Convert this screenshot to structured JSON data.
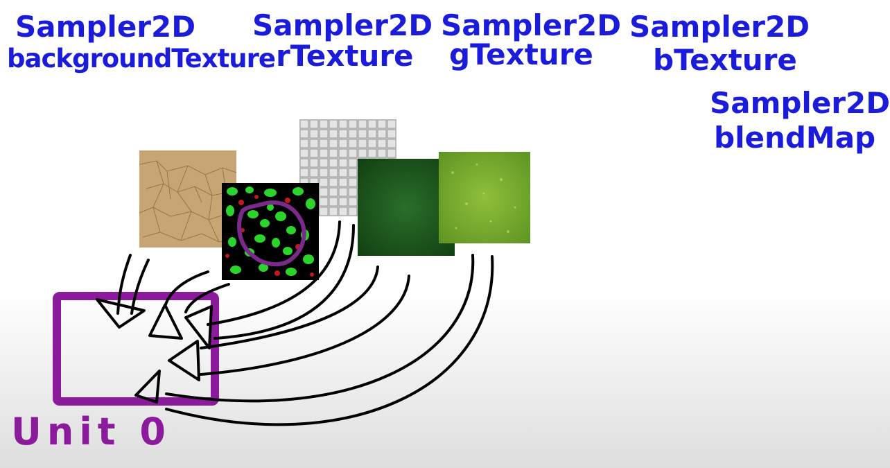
{
  "labels": {
    "background": {
      "line1": "Sampler2D",
      "line2": "backgroundTexture"
    },
    "r": {
      "line1": "Sampler2D",
      "line2": "rTexture"
    },
    "g": {
      "line1": "Sampler2D",
      "line2": "gTexture"
    },
    "b": {
      "line1": "Sampler2D",
      "line2": "bTexture"
    },
    "blend": {
      "line1": "Sampler2D",
      "line2": "blendMap"
    }
  },
  "unit_label": "Unit 0",
  "colors": {
    "handwriting": "#1b1bdc",
    "unit_box": "#8c1a9c",
    "arrows": "#000000",
    "dirt": "#c7a574",
    "grey_bricks": "#c9c9c9",
    "dark_grass": "#1e5a1e",
    "light_grass": "#7fb02c",
    "blendmap_green": "#2bd42b",
    "blendmap_red": "#c21a1a",
    "blendmap_path": "#7a2a8a"
  },
  "textures": [
    "dirt-texture",
    "grey-brick-texture",
    "dark-grass-texture",
    "light-grass-texture",
    "blend-map-texture"
  ]
}
